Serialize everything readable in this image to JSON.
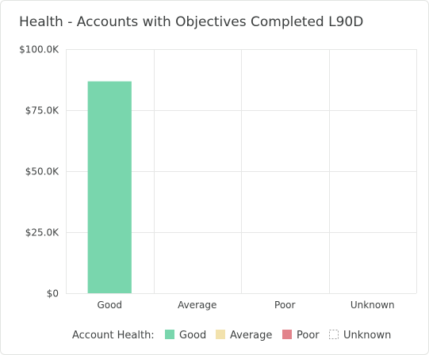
{
  "card": {
    "title": "Health - Accounts with Objectives Completed L90D"
  },
  "colors": {
    "good": "#79d6ad",
    "average": "#f2e2ad",
    "poor": "#e2838b",
    "unknown_border": "#9b9b9b",
    "grid": "#e6e7e6",
    "text": "#3f4242"
  },
  "chart_data": {
    "type": "bar",
    "categories": [
      "Good",
      "Average",
      "Poor",
      "Unknown"
    ],
    "series": [
      {
        "name": "Good",
        "values": [
          86800,
          0,
          0,
          0
        ]
      }
    ],
    "ylim": [
      0,
      100000
    ],
    "yticks": [
      0,
      25000,
      50000,
      75000,
      100000
    ],
    "ytick_labels": [
      "$0",
      "$25.0K",
      "$50.0K",
      "$75.0K",
      "$100.0K"
    ],
    "grid": true,
    "legend": {
      "placement": "bottom",
      "title": "Account Health:",
      "entries": [
        {
          "label": "Good",
          "color": "#79d6ad",
          "style": "solid"
        },
        {
          "label": "Average",
          "color": "#f2e2ad",
          "style": "solid"
        },
        {
          "label": "Poor",
          "color": "#e2838b",
          "style": "solid"
        },
        {
          "label": "Unknown",
          "color": "#9b9b9b",
          "style": "dashed"
        }
      ]
    }
  }
}
